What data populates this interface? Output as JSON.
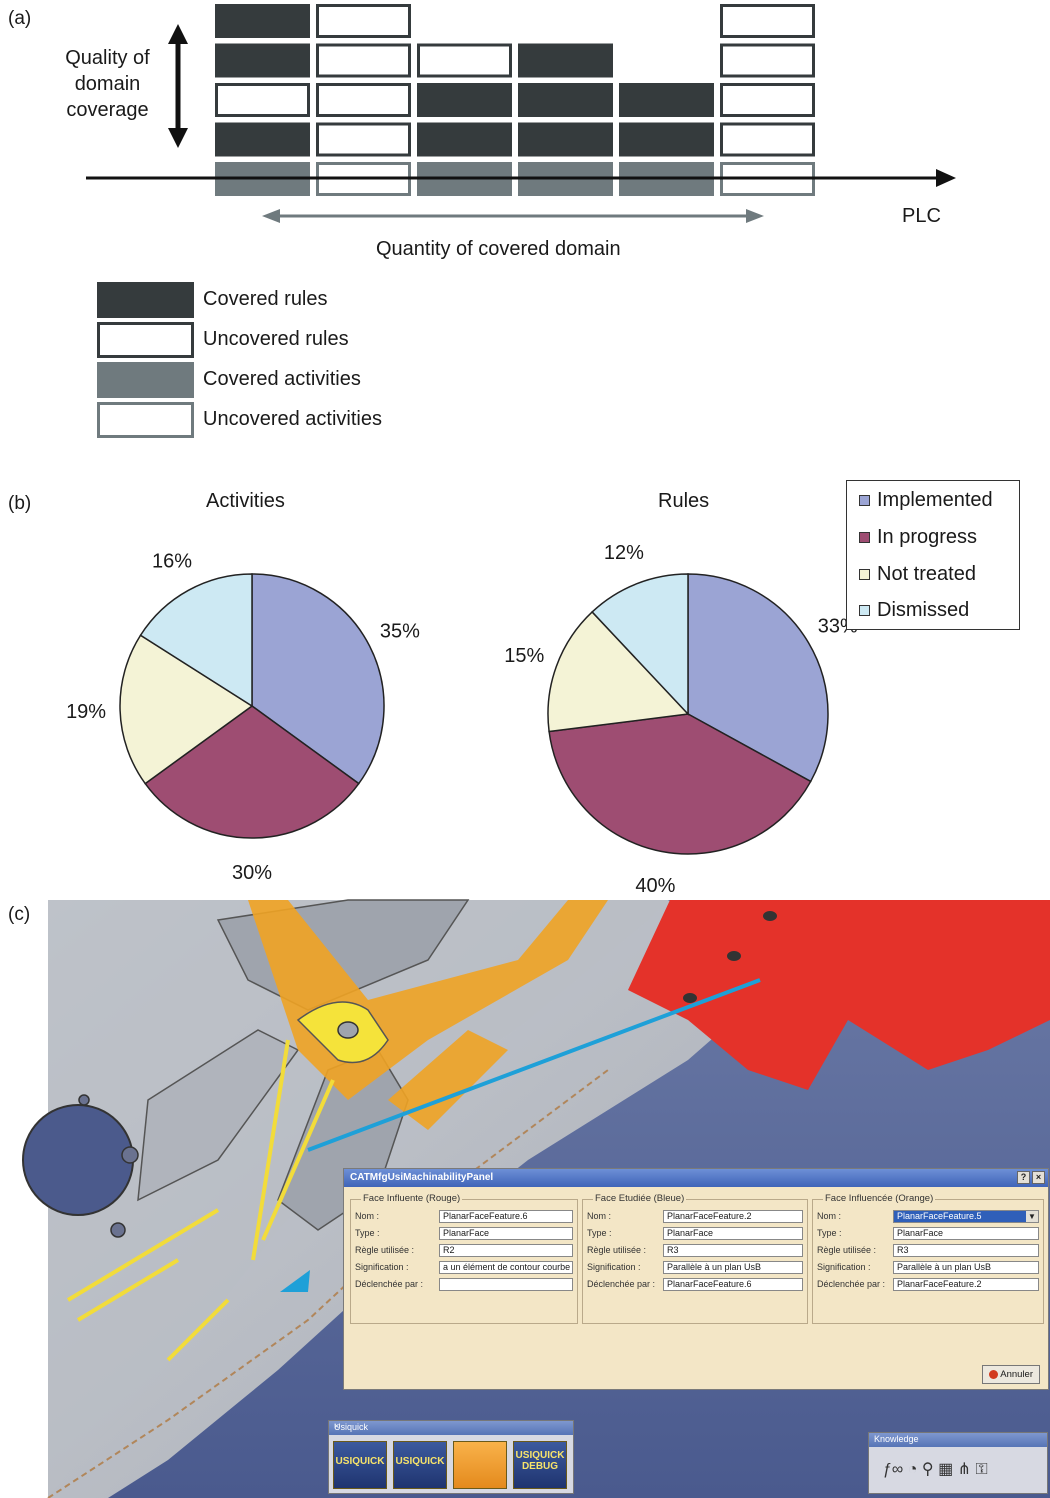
{
  "panel_a": {
    "label": "(a)",
    "yaxis_label": [
      "Quality of",
      "domain",
      "coverage"
    ],
    "xaxis_label": "PLC",
    "quantity_label": "Quantity of covered domain",
    "columns": [
      {
        "activity": "covered",
        "rules_bottom_to_top": [
          "covered",
          "uncovered",
          "covered",
          "covered"
        ]
      },
      {
        "activity": "uncovered",
        "rules_bottom_to_top": [
          "uncovered",
          "uncovered",
          "uncovered",
          "uncovered"
        ]
      },
      {
        "activity": "covered",
        "rules_bottom_to_top": [
          "covered",
          "covered",
          "uncovered"
        ]
      },
      {
        "activity": "covered",
        "rules_bottom_to_top": [
          "covered",
          "covered",
          "covered"
        ]
      },
      {
        "activity": "covered",
        "rules_bottom_to_top": [
          "covered",
          "covered"
        ]
      },
      {
        "activity": "uncovered",
        "rules_bottom_to_top": [
          "uncovered",
          "uncovered",
          "uncovered",
          "uncovered"
        ]
      }
    ],
    "legend": [
      {
        "label": "Covered rules",
        "style": "covered-rule"
      },
      {
        "label": "Uncovered rules",
        "style": "uncovered-rule"
      },
      {
        "label": "Covered activities",
        "style": "covered-activity"
      },
      {
        "label": "Uncovered activities",
        "style": "uncovered-activity"
      }
    ],
    "colors": {
      "covered_rule": "#353b3d",
      "covered_activity": "#6f7a7e",
      "uncovered_activity_border": "#6f7a7e",
      "uncovered_rule_border": "#353b3d"
    }
  },
  "panel_b": {
    "label": "(b)",
    "legend": [
      "Implemented",
      "In progress",
      "Not treated",
      "Dismissed"
    ]
  },
  "chart_data": [
    {
      "type": "pie",
      "title": "Activities",
      "categories": [
        "Implemented",
        "In progress",
        "Not treated",
        "Dismissed"
      ],
      "values": [
        35,
        30,
        19,
        16
      ],
      "labels": [
        "35%",
        "30%",
        "19%",
        "16%"
      ],
      "colors": [
        "#9ba4d4",
        "#9e4d72",
        "#f4f3d6",
        "#cde9f3"
      ]
    },
    {
      "type": "pie",
      "title": "Rules",
      "categories": [
        "Implemented",
        "In progress",
        "Not treated",
        "Dismissed"
      ],
      "values": [
        33,
        40,
        15,
        12
      ],
      "labels": [
        "33%",
        "40%",
        "15%",
        "12%"
      ],
      "colors": [
        "#9ba4d4",
        "#9e4d72",
        "#f4f3d6",
        "#cde9f3"
      ]
    }
  ],
  "panel_c": {
    "label": "(c)",
    "dialog": {
      "title": "CATMfgUsiMachinabilityPanel",
      "help": "?",
      "close": "×",
      "groups": [
        {
          "title": "Face Influente (Rouge)",
          "rows": [
            {
              "label": "Nom :",
              "value": "PlanarFaceFeature.6"
            },
            {
              "label": "Type :",
              "value": "PlanarFace"
            },
            {
              "label": "Règle utilisée :",
              "value": "R2"
            },
            {
              "label": "Signification :",
              "value": "a un élément de contour courbe"
            },
            {
              "label": "Déclenchée par :",
              "value": ""
            }
          ]
        },
        {
          "title": "Face Etudiée (Bleue)",
          "rows": [
            {
              "label": "Nom :",
              "value": "PlanarFaceFeature.2"
            },
            {
              "label": "Type :",
              "value": "PlanarFace"
            },
            {
              "label": "Règle utilisée :",
              "value": "R3"
            },
            {
              "label": "Signification :",
              "value": "Parallèle à un plan UsB"
            },
            {
              "label": "Déclenchée par :",
              "value": "PlanarFaceFeature.6"
            }
          ]
        },
        {
          "title": "Face Influencée (Orange)",
          "rows": [
            {
              "label": "Nom :",
              "value": "PlanarFaceFeature.5"
            },
            {
              "label": "Type :",
              "value": "PlanarFace"
            },
            {
              "label": "Règle utilisée :",
              "value": "R3"
            },
            {
              "label": "Signification :",
              "value": "Parallèle à un plan UsB"
            },
            {
              "label": "Déclenchée par :",
              "value": "PlanarFaceFeature.2"
            }
          ]
        }
      ],
      "cancel": "Annuler"
    },
    "usiquick_toolbar": {
      "title": "Usiquick",
      "buttons": [
        "USIQUICK",
        "USIQUICK",
        "",
        "USIQUICK DEBUG"
      ]
    },
    "knowledge_toolbar": {
      "title": "Knowledge",
      "icons": [
        "fog-icon",
        "comment-icon",
        "light-icon",
        "table-icon",
        "relations-icon",
        "lock-icon"
      ]
    }
  }
}
